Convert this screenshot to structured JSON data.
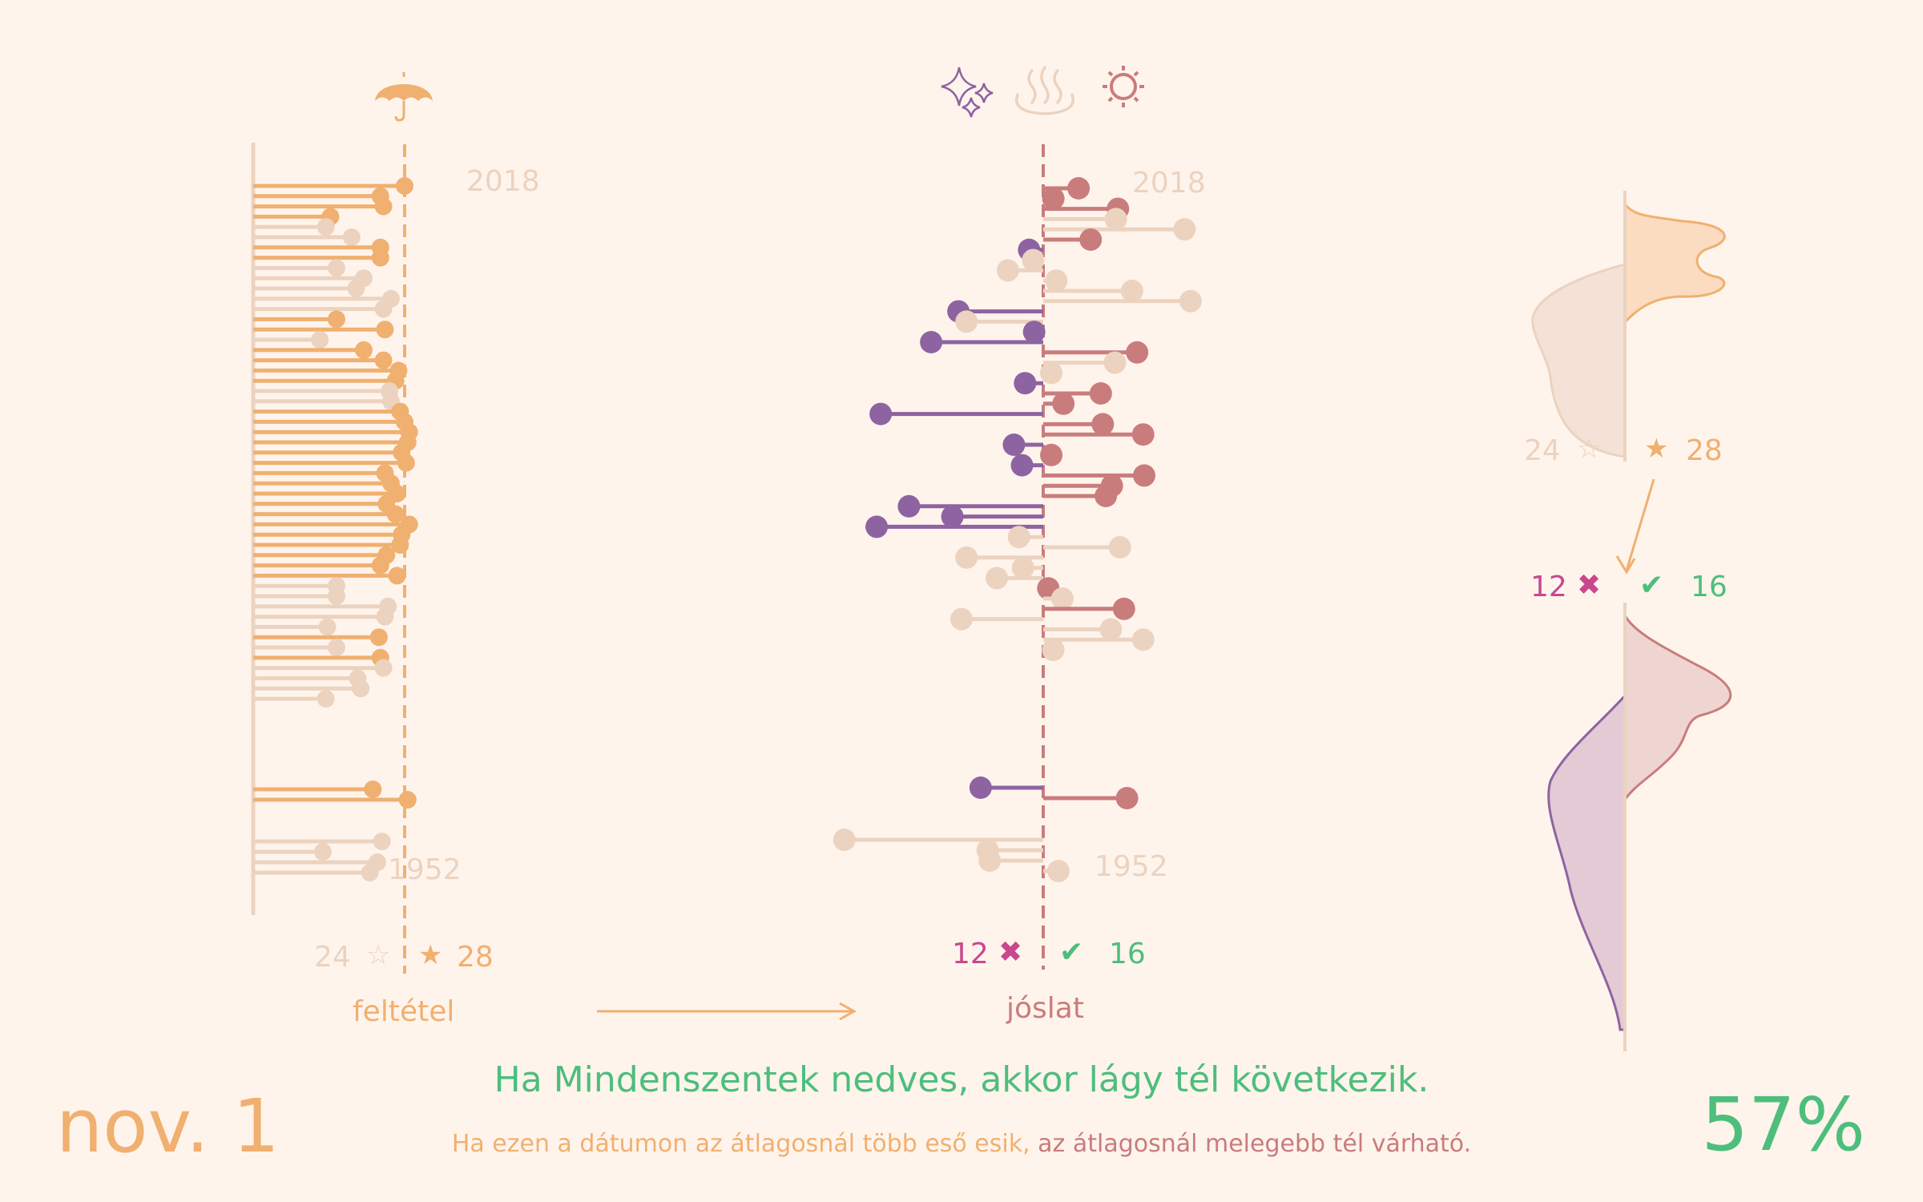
{
  "colors": {
    "background": "#fff4ec",
    "condition_true": "#f0b070",
    "condition_false": "#ebd3c0",
    "warm": "#c97c7c",
    "cold": "#8e63a2",
    "neutral": "#ebd3c0",
    "positive": "#4dbe7c",
    "negative": "#c9478f"
  },
  "icons": {
    "condition": "umbrella-icon",
    "outcome": [
      "sparkles-icon",
      "steam-icon",
      "sun-icon"
    ]
  },
  "condition_panel": {
    "top_year": "2018",
    "bottom_year": "1952",
    "false_count": "24",
    "false_symbol": "☆",
    "true_symbol": "★",
    "true_count": "28",
    "caption": "feltétel"
  },
  "prediction_panel": {
    "top_year": "2018",
    "bottom_year": "1952",
    "wrong_count": "12",
    "wrong_symbol": "✖",
    "right_symbol": "✔",
    "right_count": "16",
    "caption": "jóslat"
  },
  "density_panel": {
    "false_count": "24",
    "false_symbol": "☆",
    "true_symbol": "★",
    "true_count": "28",
    "wrong_count": "12",
    "wrong_symbol": "✖",
    "right_symbol": "✔",
    "right_count": "16"
  },
  "headline": "Ha Mindenszentek nedves, akkor lágy tél következik.",
  "subline_part1": "Ha ezen a dátumon az átlagosnál több eső esik,",
  "subline_part2": " az átlagosnál melegebb tél várható.",
  "date": "nov. 1",
  "accuracy": "57%",
  "chart_data": [
    {
      "type": "lollipop",
      "name": "condition",
      "years_top_to_bottom": [
        2018,
        1952
      ],
      "rows": [
        {
          "v": 1.0,
          "wet": true
        },
        {
          "v": 0.84,
          "wet": true
        },
        {
          "v": 0.86,
          "wet": true
        },
        {
          "v": 0.51,
          "wet": true
        },
        {
          "v": 0.48,
          "wet": false
        },
        {
          "v": 0.65,
          "wet": false
        },
        {
          "v": 0.84,
          "wet": true
        },
        {
          "v": 0.84,
          "wet": true
        },
        {
          "v": 0.55,
          "wet": false
        },
        {
          "v": 0.73,
          "wet": false
        },
        {
          "v": 0.68,
          "wet": false
        },
        {
          "v": 0.91,
          "wet": false
        },
        {
          "v": 0.86,
          "wet": false
        },
        {
          "v": 0.55,
          "wet": true
        },
        {
          "v": 0.87,
          "wet": true
        },
        {
          "v": 0.44,
          "wet": false
        },
        {
          "v": 0.73,
          "wet": true
        },
        {
          "v": 0.86,
          "wet": true
        },
        {
          "v": 0.96,
          "wet": true
        },
        {
          "v": 0.94,
          "wet": true
        },
        {
          "v": 0.9,
          "wet": false
        },
        {
          "v": 0.91,
          "wet": false
        },
        {
          "v": 0.97,
          "wet": true
        },
        {
          "v": 1.0,
          "wet": true
        },
        {
          "v": 1.03,
          "wet": true
        },
        {
          "v": 1.02,
          "wet": true
        },
        {
          "v": 0.98,
          "wet": true
        },
        {
          "v": 1.01,
          "wet": true
        },
        {
          "v": 0.87,
          "wet": true
        },
        {
          "v": 0.91,
          "wet": true
        },
        {
          "v": 0.95,
          "wet": true
        },
        {
          "v": 0.88,
          "wet": true
        },
        {
          "v": 0.94,
          "wet": true
        },
        {
          "v": 1.03,
          "wet": true
        },
        {
          "v": 0.98,
          "wet": true
        },
        {
          "v": 0.97,
          "wet": true
        },
        {
          "v": 0.88,
          "wet": true
        },
        {
          "v": 0.84,
          "wet": true
        },
        {
          "v": 0.95,
          "wet": true
        },
        {
          "v": 0.55,
          "wet": false
        },
        {
          "v": 0.55,
          "wet": false
        },
        {
          "v": 0.89,
          "wet": false
        },
        {
          "v": 0.87,
          "wet": false
        },
        {
          "v": 0.49,
          "wet": false
        },
        {
          "v": 0.83,
          "wet": true
        },
        {
          "v": 0.55,
          "wet": false
        },
        {
          "v": 0.84,
          "wet": true
        },
        {
          "v": 0.86,
          "wet": false
        },
        {
          "v": 0.69,
          "wet": false
        },
        {
          "v": 0.71,
          "wet": false
        },
        {
          "v": 0.48,
          "wet": false
        }
      ],
      "late_rows": [
        {
          "v": 0.79,
          "wet": true
        },
        {
          "v": 1.02,
          "wet": true
        },
        {
          "v": 0.85,
          "wet": false
        },
        {
          "v": 0.46,
          "wet": false
        },
        {
          "v": 0.82,
          "wet": false
        },
        {
          "v": 0.77,
          "wet": false
        }
      ]
    },
    {
      "type": "diverging-lollipop",
      "name": "prediction",
      "rows": [
        {
          "v": 0.35,
          "wet": true
        },
        {
          "v": 0.1,
          "wet": true
        },
        {
          "v": 0.74,
          "wet": true
        },
        {
          "v": 0.72,
          "wet": false
        },
        {
          "v": 1.4,
          "wet": false
        },
        {
          "v": 0.47,
          "wet": true
        },
        {
          "v": -0.14,
          "wet": true
        },
        {
          "v": -0.1,
          "wet": false
        },
        {
          "v": -0.35,
          "wet": false
        },
        {
          "v": 0.13,
          "wet": false
        },
        {
          "v": 0.88,
          "wet": false
        },
        {
          "v": 1.46,
          "wet": false
        },
        {
          "v": -0.84,
          "wet": true
        },
        {
          "v": -0.76,
          "wet": false
        },
        {
          "v": -0.09,
          "wet": true
        },
        {
          "v": -1.11,
          "wet": true
        },
        {
          "v": 0.93,
          "wet": true
        },
        {
          "v": 0.71,
          "wet": false
        },
        {
          "v": 0.08,
          "wet": false
        },
        {
          "v": -0.18,
          "wet": true
        },
        {
          "v": 0.57,
          "wet": true
        },
        {
          "v": 0.2,
          "wet": true
        },
        {
          "v": -1.61,
          "wet": true
        },
        {
          "v": 0.59,
          "wet": true
        },
        {
          "v": 0.99,
          "wet": true
        },
        {
          "v": -0.29,
          "wet": true
        },
        {
          "v": 0.08,
          "wet": true
        },
        {
          "v": -0.21,
          "wet": true
        },
        {
          "v": 1.0,
          "wet": true
        },
        {
          "v": 0.68,
          "wet": true
        },
        {
          "v": 0.62,
          "wet": true
        },
        {
          "v": -1.33,
          "wet": true
        },
        {
          "v": -0.9,
          "wet": true
        },
        {
          "v": -1.65,
          "wet": true
        },
        {
          "v": -0.24,
          "wet": false
        },
        {
          "v": 0.76,
          "wet": false
        },
        {
          "v": -0.76,
          "wet": false
        },
        {
          "v": -0.2,
          "wet": false
        },
        {
          "v": -0.46,
          "wet": false
        },
        {
          "v": 0.05,
          "wet": true
        },
        {
          "v": 0.19,
          "wet": false
        },
        {
          "v": 0.8,
          "wet": true
        },
        {
          "v": -0.81,
          "wet": false
        },
        {
          "v": 0.67,
          "wet": false
        },
        {
          "v": 0.99,
          "wet": false
        },
        {
          "v": 0.1,
          "wet": false
        }
      ],
      "late_rows": [
        {
          "v": -0.62,
          "wet": true
        },
        {
          "v": 0.83,
          "wet": true
        },
        {
          "v": -1.97,
          "wet": false
        },
        {
          "v": -0.55,
          "wet": false
        },
        {
          "v": -0.53,
          "wet": false
        },
        {
          "v": 0.15,
          "wet": false
        }
      ]
    }
  ]
}
